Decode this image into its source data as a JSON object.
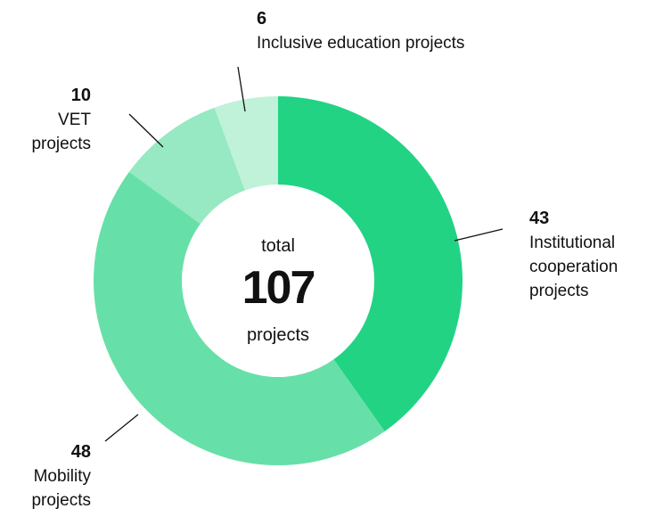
{
  "chart_data": {
    "type": "donut",
    "categories": [
      "Institutional cooperation projects",
      "Mobility projects",
      "VET projects",
      "Inclusive education projects"
    ],
    "values": [
      43,
      48,
      10,
      6
    ],
    "colors": [
      "#22d384",
      "#66e0a8",
      "#96e9c2",
      "#bff2d9"
    ],
    "center_label_top": "total",
    "total": 107,
    "center_label_bottom": "projects"
  }
}
